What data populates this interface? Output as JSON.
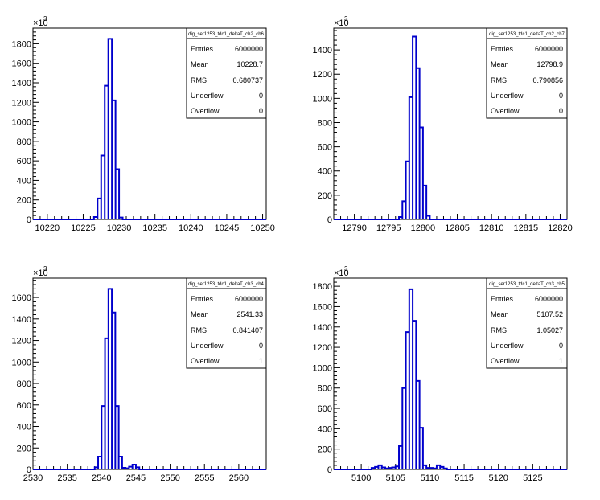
{
  "chart_data": [
    {
      "type": "bar",
      "stats_title": "dig_ser1253_tdc1_deltaT_ch2_ch6",
      "stats": [
        {
          "label": "Entries",
          "value": "6000000"
        },
        {
          "label": "Mean",
          "value": "10228.7"
        },
        {
          "label": "RMS",
          "value": "0.680737"
        },
        {
          "label": "Underflow",
          "value": "0"
        },
        {
          "label": "Overflow",
          "value": "0"
        }
      ],
      "y_multiplier": "×10",
      "y_exponent": "3",
      "xlim": [
        10218,
        10250.5
      ],
      "ylim": [
        0,
        1960
      ],
      "xticks": [
        10220,
        10225,
        10230,
        10235,
        10240,
        10245,
        10250
      ],
      "xtick_labels": [
        "10220",
        "10225",
        "10230",
        "10235",
        "10240",
        "10245",
        "10250"
      ],
      "yticks": [
        0,
        200,
        400,
        600,
        800,
        1000,
        1200,
        1400,
        1600,
        1800
      ],
      "ytick_labels": [
        "0",
        "200",
        "400",
        "600",
        "800",
        "1000",
        "1200",
        "1400",
        "1600",
        "1800"
      ],
      "bin_width": 0.5,
      "bins": [
        [
          10226.5,
          25
        ],
        [
          10227.0,
          215
        ],
        [
          10227.5,
          655
        ],
        [
          10228.0,
          1370
        ],
        [
          10228.5,
          1850
        ],
        [
          10229.0,
          1220
        ],
        [
          10229.5,
          515
        ],
        [
          10230.0,
          20
        ]
      ]
    },
    {
      "type": "bar",
      "stats_title": "dig_ser1253_tdc1_deltaT_ch2_ch7",
      "stats": [
        {
          "label": "Entries",
          "value": "6000000"
        },
        {
          "label": "Mean",
          "value": "12798.9"
        },
        {
          "label": "RMS",
          "value": "0.790856"
        },
        {
          "label": "Underflow",
          "value": "0"
        },
        {
          "label": "Overflow",
          "value": "0"
        }
      ],
      "y_multiplier": "×10",
      "y_exponent": "3",
      "xlim": [
        12787,
        12821
      ],
      "ylim": [
        0,
        1580
      ],
      "xticks": [
        12790,
        12795,
        12800,
        12805,
        12810,
        12815,
        12820
      ],
      "xtick_labels": [
        "12790",
        "12795",
        "12800",
        "12805",
        "12810",
        "12815",
        "12820"
      ],
      "yticks": [
        0,
        200,
        400,
        600,
        800,
        1000,
        1200,
        1400
      ],
      "ytick_labels": [
        "0",
        "200",
        "400",
        "600",
        "800",
        "1000",
        "1200",
        "1400"
      ],
      "bin_width": 0.5,
      "bins": [
        [
          12796.5,
          20
        ],
        [
          12797.0,
          150
        ],
        [
          12797.5,
          480
        ],
        [
          12798.0,
          1010
        ],
        [
          12798.5,
          1510
        ],
        [
          12799.0,
          1250
        ],
        [
          12799.5,
          760
        ],
        [
          12800.0,
          280
        ],
        [
          12800.5,
          30
        ]
      ]
    },
    {
      "type": "bar",
      "stats_title": "dig_ser1253_tdc1_deltaT_ch3_ch4",
      "stats": [
        {
          "label": "Entries",
          "value": "6000000"
        },
        {
          "label": "Mean",
          "value": "2541.33"
        },
        {
          "label": "RMS",
          "value": "0.841407"
        },
        {
          "label": "Underflow",
          "value": "0"
        },
        {
          "label": "Overflow",
          "value": "1"
        }
      ],
      "y_multiplier": "×10",
      "y_exponent": "3",
      "xlim": [
        2530,
        2564
      ],
      "ylim": [
        0,
        1780
      ],
      "xticks": [
        2530,
        2535,
        2540,
        2545,
        2550,
        2555,
        2560
      ],
      "xtick_labels": [
        "2530",
        "2535",
        "2540",
        "2545",
        "2550",
        "2555",
        "2560"
      ],
      "yticks": [
        0,
        200,
        400,
        600,
        800,
        1000,
        1200,
        1400,
        1600
      ],
      "ytick_labels": [
        "0",
        "200",
        "400",
        "600",
        "800",
        "1000",
        "1200",
        "1400",
        "1600"
      ],
      "bin_width": 0.5,
      "bins": [
        [
          2539.0,
          20
        ],
        [
          2539.5,
          120
        ],
        [
          2540.0,
          590
        ],
        [
          2540.5,
          1220
        ],
        [
          2541.0,
          1680
        ],
        [
          2541.5,
          1460
        ],
        [
          2542.0,
          590
        ],
        [
          2542.5,
          120
        ],
        [
          2543.0,
          15
        ],
        [
          2543.5,
          10
        ],
        [
          2544.0,
          25
        ],
        [
          2544.5,
          45
        ],
        [
          2545.0,
          20
        ]
      ]
    },
    {
      "type": "bar",
      "stats_title": "dig_ser1253_tdc1_deltaT_ch3_ch5",
      "stats": [
        {
          "label": "Entries",
          "value": "6000000"
        },
        {
          "label": "Mean",
          "value": "5107.52"
        },
        {
          "label": "RMS",
          "value": "1.05027"
        },
        {
          "label": "Underflow",
          "value": "0"
        },
        {
          "label": "Overflow",
          "value": "1"
        }
      ],
      "y_multiplier": "×10",
      "y_exponent": "3",
      "xlim": [
        5096,
        5130
      ],
      "ylim": [
        0,
        1880
      ],
      "xticks": [
        5100,
        5105,
        5110,
        5115,
        5120,
        5125
      ],
      "xtick_labels": [
        "5100",
        "5105",
        "5110",
        "5115",
        "5120",
        "5125"
      ],
      "yticks": [
        0,
        200,
        400,
        600,
        800,
        1000,
        1200,
        1400,
        1600,
        1800
      ],
      "ytick_labels": [
        "0",
        "200",
        "400",
        "600",
        "800",
        "1000",
        "1200",
        "1400",
        "1600",
        "1800"
      ],
      "bin_width": 0.5,
      "bins": [
        [
          5101.5,
          15
        ],
        [
          5102.0,
          25
        ],
        [
          5102.5,
          40
        ],
        [
          5103.0,
          20
        ],
        [
          5103.5,
          10
        ],
        [
          5104.0,
          15
        ],
        [
          5104.5,
          20
        ],
        [
          5105.0,
          30
        ],
        [
          5105.5,
          230
        ],
        [
          5106.0,
          800
        ],
        [
          5106.5,
          1350
        ],
        [
          5107.0,
          1770
        ],
        [
          5107.5,
          1460
        ],
        [
          5108.0,
          870
        ],
        [
          5108.5,
          410
        ],
        [
          5109.0,
          40
        ],
        [
          5109.5,
          15
        ],
        [
          5110.0,
          15
        ],
        [
          5110.5,
          10
        ],
        [
          5111.0,
          40
        ],
        [
          5111.5,
          25
        ],
        [
          5112.0,
          10
        ]
      ]
    }
  ]
}
